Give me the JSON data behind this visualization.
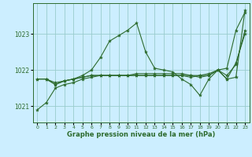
{
  "title": "Graphe pression niveau de la mer (hPa)",
  "bg_color": "#cceeff",
  "grid_color": "#99cccc",
  "line_color": "#2d6b2d",
  "marker_color": "#2d6b2d",
  "xlim": [
    -0.5,
    23.5
  ],
  "ylim": [
    1020.55,
    1023.85
  ],
  "yticks": [
    1021,
    1022,
    1023
  ],
  "xticks": [
    0,
    1,
    2,
    3,
    4,
    5,
    6,
    7,
    8,
    9,
    10,
    11,
    12,
    13,
    14,
    15,
    16,
    17,
    18,
    19,
    20,
    21,
    22,
    23
  ],
  "series": [
    {
      "x": [
        0,
        1,
        2,
        3,
        4,
        5,
        6,
        7,
        8,
        9,
        10,
        11,
        12,
        13,
        14,
        15,
        16,
        17,
        18,
        19,
        20,
        21,
        22,
        23
      ],
      "y": [
        1021.75,
        1021.75,
        1021.65,
        1021.7,
        1021.75,
        1021.8,
        1021.85,
        1021.85,
        1021.85,
        1021.85,
        1021.85,
        1021.9,
        1021.9,
        1021.9,
        1021.9,
        1021.9,
        1021.9,
        1021.85,
        1021.8,
        1021.85,
        1022.0,
        1021.75,
        1021.8,
        1023.65
      ]
    },
    {
      "x": [
        0,
        1,
        2,
        3,
        4,
        5,
        6,
        7,
        8,
        9,
        10,
        11,
        12,
        13,
        14,
        15,
        16,
        17,
        18,
        19,
        20,
        21,
        22,
        23
      ],
      "y": [
        1021.75,
        1021.75,
        1021.6,
        1021.7,
        1021.75,
        1021.85,
        1022.0,
        1022.35,
        1022.8,
        1022.95,
        1023.1,
        1023.3,
        1022.5,
        1022.05,
        1022.0,
        1021.95,
        1021.75,
        1021.6,
        1021.3,
        1021.75,
        1022.0,
        1021.75,
        1022.2,
        1023.0
      ]
    },
    {
      "x": [
        0,
        1,
        2,
        3,
        4,
        5,
        6,
        7,
        8,
        9,
        10,
        11,
        12,
        13,
        14,
        15,
        16,
        17,
        18,
        19,
        20,
        21,
        22,
        23
      ],
      "y": [
        1020.9,
        1021.1,
        1021.5,
        1021.6,
        1021.65,
        1021.75,
        1021.8,
        1021.85,
        1021.85,
        1021.85,
        1021.85,
        1021.85,
        1021.85,
        1021.85,
        1021.85,
        1021.85,
        1021.85,
        1021.85,
        1021.85,
        1021.85,
        1022.0,
        1021.85,
        1022.15,
        1023.1
      ]
    },
    {
      "x": [
        1,
        2,
        3,
        4,
        5,
        6,
        7,
        8,
        9,
        10,
        11,
        12,
        13,
        14,
        15,
        16,
        17,
        18,
        19,
        20,
        21,
        22,
        23
      ],
      "y": [
        1021.75,
        1021.6,
        1021.7,
        1021.75,
        1021.8,
        1021.85,
        1021.85,
        1021.85,
        1021.85,
        1021.85,
        1021.85,
        1021.85,
        1021.85,
        1021.85,
        1021.85,
        1021.85,
        1021.8,
        1021.85,
        1021.9,
        1022.0,
        1022.05,
        1023.1,
        1023.6
      ]
    }
  ]
}
